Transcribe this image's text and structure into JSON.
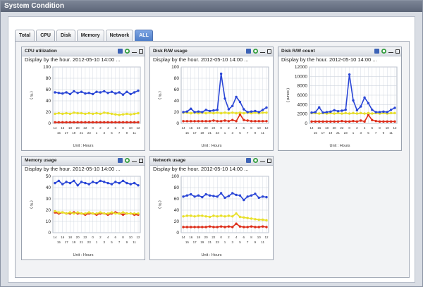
{
  "window": {
    "title": "System Condition"
  },
  "tabs": [
    {
      "label": "Total"
    },
    {
      "label": "CPU"
    },
    {
      "label": "Disk"
    },
    {
      "label": "Memory"
    },
    {
      "label": "Network"
    },
    {
      "label": "ALL",
      "active": true
    }
  ],
  "icons": {
    "save": "save-icon",
    "refresh": "refresh-icon",
    "minimize": "minimize-icon",
    "maximize": "maximize-icon"
  },
  "colors": {
    "blue": "#2a46d6",
    "yellow": "#e8e02a",
    "red": "#dd2d19",
    "grid": "#cdd3dd"
  },
  "chart_data": [
    {
      "type": "line",
      "title": "CPU utilization",
      "subtitle": "Display by the hour.  2012-05-10 14:00 ...",
      "ylabel": "( % )",
      "xlabel": "Unit : Hours",
      "ylim": [
        0,
        100
      ],
      "yticks": [
        0,
        20,
        40,
        60,
        80,
        100
      ],
      "xticks_top": [
        "14",
        "16",
        "18",
        "20",
        "22",
        "0",
        "2",
        "4",
        "6",
        "8",
        "10",
        "12"
      ],
      "xticks_bottom": [
        "15",
        "17",
        "19",
        "21",
        "23",
        "1",
        "3",
        "5",
        "7",
        "9",
        "11",
        "13"
      ],
      "series": [
        {
          "color": "#2a46d6",
          "values": [
            55,
            54,
            53,
            55,
            52,
            57,
            54,
            56,
            53,
            54,
            52,
            56,
            55,
            57,
            54,
            56,
            53,
            55,
            51,
            56,
            52,
            55,
            58
          ]
        },
        {
          "color": "#e8e02a",
          "values": [
            17,
            18,
            17,
            18,
            17,
            19,
            18,
            18,
            17,
            18,
            17,
            18,
            17,
            19,
            18,
            17,
            16,
            15,
            16,
            17,
            16,
            17,
            18
          ]
        },
        {
          "color": "#dd2d19",
          "values": [
            2,
            2,
            2,
            2,
            2,
            2,
            2,
            2,
            2,
            2,
            2,
            2,
            2,
            2,
            2,
            2,
            2,
            2,
            2,
            2,
            2,
            2,
            2
          ]
        }
      ]
    },
    {
      "type": "line",
      "title": "Disk R/W usage",
      "subtitle": "Display by the hour.  2012-05-10 14:00 ...",
      "ylabel": "( % )",
      "xlabel": "Unit : Hours",
      "ylim": [
        0,
        100
      ],
      "yticks": [
        0,
        20,
        40,
        60,
        80,
        100
      ],
      "xticks_top": [
        "14",
        "16",
        "18",
        "20",
        "22",
        "0",
        "2",
        "4",
        "6",
        "8",
        "10",
        "12"
      ],
      "xticks_bottom": [
        "15",
        "17",
        "19",
        "21",
        "23",
        "1",
        "3",
        "5",
        "7",
        "9",
        "11",
        "13"
      ],
      "series": [
        {
          "color": "#2a46d6",
          "values": [
            20,
            21,
            26,
            20,
            21,
            20,
            24,
            22,
            23,
            24,
            88,
            44,
            25,
            31,
            47,
            38,
            25,
            20,
            21,
            22,
            20,
            24,
            28
          ]
        },
        {
          "color": "#e8e02a",
          "values": [
            19,
            19,
            18,
            19,
            18,
            19,
            18,
            19,
            18,
            19,
            18,
            19,
            18,
            19,
            18,
            19,
            18,
            19,
            18,
            19,
            18,
            19,
            19
          ]
        },
        {
          "color": "#dd2d19",
          "values": [
            4,
            4,
            4,
            4,
            4,
            4,
            4,
            4,
            5,
            4,
            4,
            5,
            4,
            6,
            4,
            16,
            6,
            5,
            4,
            4,
            4,
            4,
            4
          ]
        }
      ]
    },
    {
      "type": "line",
      "title": "Disk R/W count",
      "subtitle": "Display by the hour.  2012-05-10 14:00 ...",
      "ylabel": "( count )",
      "xlabel": "Unit : Hours",
      "ylim": [
        0,
        12000
      ],
      "yticks": [
        0,
        2000,
        4000,
        6000,
        8000,
        10000,
        12000
      ],
      "xticks_top": [
        "14",
        "16",
        "18",
        "20",
        "22",
        "0",
        "2",
        "4",
        "6",
        "8",
        "10",
        "12"
      ],
      "xticks_bottom": [
        "15",
        "17",
        "19",
        "21",
        "23",
        "1",
        "3",
        "5",
        "7",
        "9",
        "11",
        "13"
      ],
      "series": [
        {
          "color": "#2a46d6",
          "values": [
            2300,
            2400,
            3400,
            2300,
            2400,
            2500,
            2800,
            2600,
            2700,
            2900,
            10400,
            4900,
            2800,
            3600,
            5500,
            4300,
            2900,
            2400,
            2400,
            2500,
            2400,
            2900,
            3300
          ]
        },
        {
          "color": "#e8e02a",
          "values": [
            2200,
            2200,
            2100,
            2200,
            2100,
            2200,
            2100,
            2200,
            2100,
            2200,
            2100,
            2200,
            2100,
            2200,
            2100,
            2200,
            2100,
            2200,
            2100,
            2200,
            2100,
            2200,
            2200
          ]
        },
        {
          "color": "#dd2d19",
          "values": [
            400,
            400,
            400,
            400,
            400,
            400,
            400,
            400,
            500,
            400,
            400,
            500,
            400,
            600,
            400,
            1800,
            700,
            500,
            400,
            400,
            400,
            400,
            400
          ]
        }
      ]
    },
    {
      "type": "line",
      "title": "Memory usage",
      "subtitle": "Display by the hour.  2012-05-10 14:00 ...",
      "ylabel": "( % )",
      "xlabel": "Unit : Hours",
      "ylim": [
        0,
        50
      ],
      "yticks": [
        0,
        10,
        20,
        30,
        40,
        50
      ],
      "xticks_top": [
        "14",
        "16",
        "18",
        "20",
        "22",
        "0",
        "2",
        "4",
        "6",
        "8",
        "10",
        "12"
      ],
      "xticks_bottom": [
        "15",
        "17",
        "19",
        "21",
        "23",
        "1",
        "3",
        "5",
        "7",
        "9",
        "11",
        "13"
      ],
      "series": [
        {
          "color": "#2a46d6",
          "values": [
            44,
            46,
            43,
            45,
            44,
            46,
            42,
            45,
            44,
            43,
            45,
            44,
            46,
            45,
            44,
            43,
            45,
            44,
            46,
            44,
            43,
            44,
            42
          ]
        },
        {
          "color": "#e8e02a",
          "values": [
            19,
            18,
            18,
            17,
            18,
            17,
            18,
            17,
            17,
            18,
            17,
            17,
            18,
            17,
            17,
            18,
            17,
            17,
            18,
            17,
            17,
            17,
            17
          ]
        },
        {
          "color": "#dd2d19",
          "values": [
            18,
            17,
            18,
            17,
            17,
            18,
            17,
            17,
            16,
            17,
            17,
            16,
            17,
            17,
            16,
            17,
            18,
            17,
            16,
            17,
            17,
            16,
            16
          ]
        }
      ]
    },
    {
      "type": "line",
      "title": "Network usage",
      "subtitle": "Display by the hour.  2012-05-10 14:00 ...",
      "ylabel": "( % )",
      "xlabel": "Unit : Hours",
      "ylim": [
        0,
        100
      ],
      "yticks": [
        0,
        20,
        40,
        60,
        80,
        100
      ],
      "xticks_top": [
        "14",
        "16",
        "18",
        "20",
        "22",
        "0",
        "2",
        "4",
        "6",
        "8",
        "10",
        "12"
      ],
      "xticks_bottom": [
        "15",
        "17",
        "19",
        "21",
        "23",
        "1",
        "3",
        "5",
        "7",
        "9",
        "11",
        "13"
      ],
      "series": [
        {
          "color": "#2a46d6",
          "values": [
            64,
            66,
            68,
            64,
            66,
            63,
            68,
            66,
            65,
            64,
            70,
            62,
            65,
            70,
            67,
            66,
            58,
            64,
            66,
            69,
            62,
            64,
            63
          ]
        },
        {
          "color": "#e8e02a",
          "values": [
            29,
            30,
            30,
            29,
            30,
            30,
            29,
            28,
            30,
            29,
            30,
            29,
            30,
            29,
            34,
            28,
            27,
            26,
            25,
            24,
            23,
            23,
            22
          ]
        },
        {
          "color": "#dd2d19",
          "values": [
            10,
            10,
            10,
            10,
            10,
            10,
            10,
            11,
            10,
            10,
            11,
            10,
            11,
            10,
            16,
            11,
            10,
            10,
            11,
            10,
            10,
            11,
            10
          ]
        }
      ]
    }
  ]
}
